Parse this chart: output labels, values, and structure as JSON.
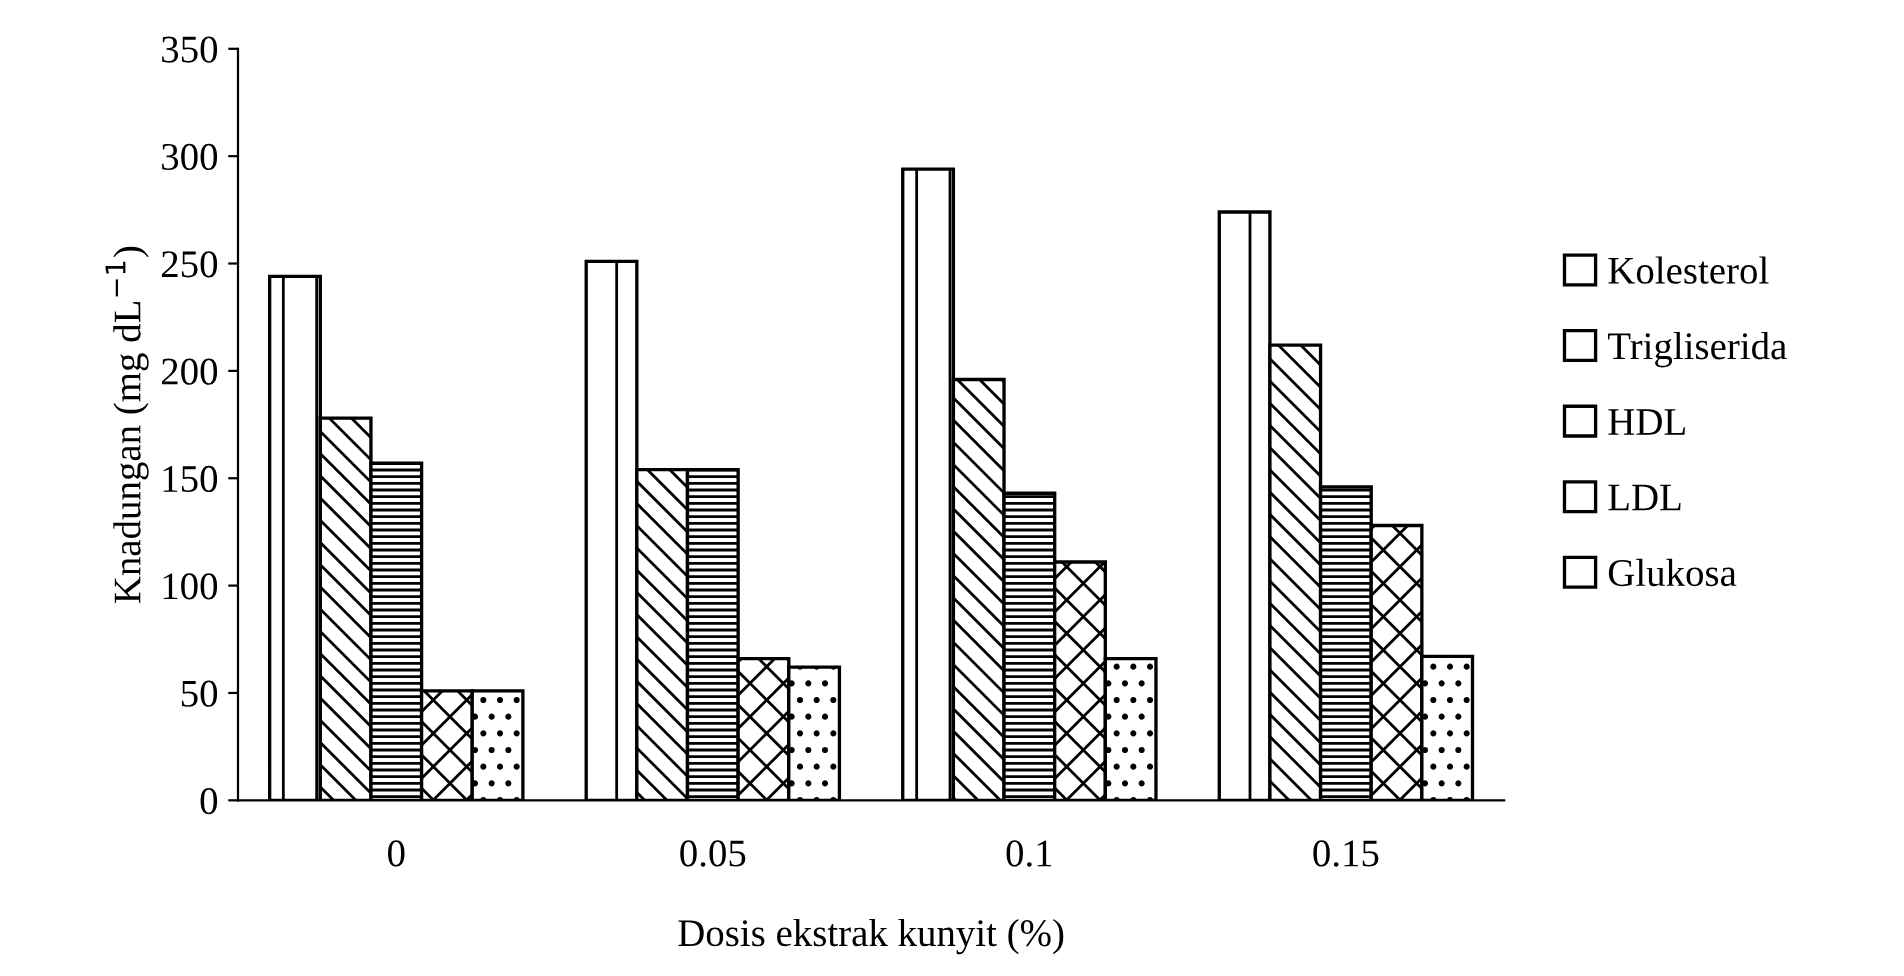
{
  "chart_data": {
    "type": "bar",
    "xlabel": "Dosis ekstrak kunyit (%)",
    "ylabel": "Knadungan (mg dL$^{−1}$)",
    "categories": [
      "0",
      "0.05",
      "0.1",
      "0.15"
    ],
    "series": [
      {
        "name": "Kolesterol",
        "color": "#ffffff",
        "values": [
          244,
          251,
          294,
          274
        ]
      },
      {
        "name": "Trigliserida",
        "color": "#ffffff",
        "values": [
          178,
          154,
          196,
          212
        ]
      },
      {
        "name": "HDL",
        "color": "#ffffff",
        "values": [
          157,
          154,
          143,
          146
        ]
      },
      {
        "name": "LDL",
        "color": "#ffffff",
        "values": [
          51,
          66,
          111,
          128
        ]
      },
      {
        "name": "Glukosa",
        "color": "#ffffff",
        "values": [
          51,
          62,
          66,
          67
        ]
      }
    ],
    "ylim": [
      0,
      350
    ],
    "yticks": [
      0,
      50,
      100,
      150,
      200,
      250,
      300,
      350
    ],
    "grid": false,
    "legend": "right"
  }
}
